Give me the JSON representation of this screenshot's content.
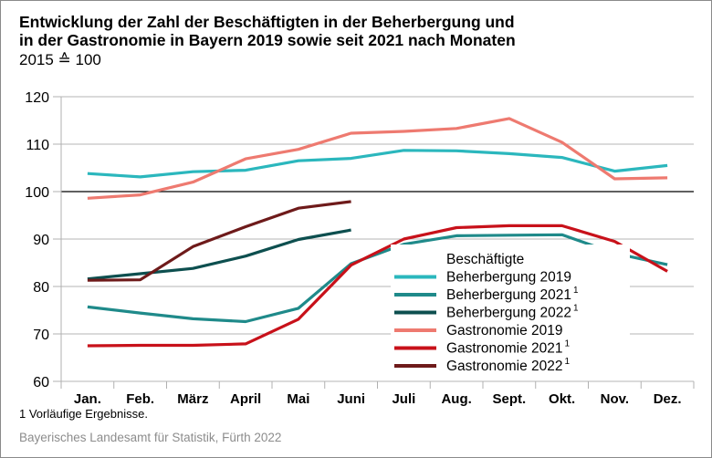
{
  "chart_data": {
    "type": "line",
    "title": "Entwicklung der Zahl der Beschäftigten in der Beherbergung und in der Gastronomie in Bayern 2019 sowie seit 2021 nach Monaten",
    "title_lines": [
      "Entwicklung der Zahl der Beschäftigten in der Beherbergung und",
      "in der Gastronomie in Bayern 2019 sowie seit 2021 nach Monaten"
    ],
    "subtitle": "2015 ≙ 100",
    "xlabel": "",
    "ylabel": "",
    "categories": [
      "Jan.",
      "Feb.",
      "März",
      "April",
      "Mai",
      "Juni",
      "Juli",
      "Aug.",
      "Sept.",
      "Okt.",
      "Nov.",
      "Dez."
    ],
    "ylim": [
      60,
      120
    ],
    "yticks": [
      60,
      70,
      80,
      90,
      100,
      110,
      120
    ],
    "reference_line": 100,
    "grid": true,
    "legend_title": "Beschäftigte",
    "legend_position": "bottom-center",
    "series": [
      {
        "name": "Beherbergung 2019",
        "footnote": "",
        "color": "#2bb7bd",
        "values": [
          103.8,
          103.1,
          104.2,
          104.5,
          106.5,
          107.0,
          108.7,
          108.6,
          108.0,
          107.2,
          104.3,
          105.5
        ]
      },
      {
        "name": "Beherbergung 2021",
        "footnote": "1",
        "color": "#1f8a8a",
        "values": [
          75.7,
          74.4,
          73.2,
          72.6,
          75.4,
          84.8,
          88.9,
          90.7,
          90.8,
          90.9,
          87.0,
          84.6
        ]
      },
      {
        "name": "Beherbergung 2022",
        "footnote": "1",
        "color": "#0d4f4f",
        "values": [
          81.6,
          82.7,
          83.8,
          86.4,
          89.9,
          91.9,
          null,
          null,
          null,
          null,
          null,
          null
        ]
      },
      {
        "name": "Gastronomie 2019",
        "footnote": "",
        "color": "#ee7a70",
        "values": [
          98.6,
          99.3,
          102.0,
          106.9,
          108.9,
          112.3,
          112.7,
          113.3,
          115.4,
          110.4,
          102.7,
          102.9
        ]
      },
      {
        "name": "Gastronomie 2021",
        "footnote": "1",
        "color": "#c8111a",
        "values": [
          67.5,
          67.6,
          67.6,
          67.9,
          73.1,
          84.5,
          90.0,
          92.4,
          92.8,
          92.8,
          89.5,
          83.2
        ]
      },
      {
        "name": "Gastronomie 2022",
        "footnote": "1",
        "color": "#6e1a1a",
        "values": [
          81.3,
          81.4,
          88.4,
          92.6,
          96.5,
          97.9,
          null,
          null,
          null,
          null,
          null,
          null
        ]
      }
    ]
  },
  "footnote": "1  Vorläufige Ergebnisse.",
  "source": "Bayerisches Landesamt für Statistik, Fürth 2022"
}
